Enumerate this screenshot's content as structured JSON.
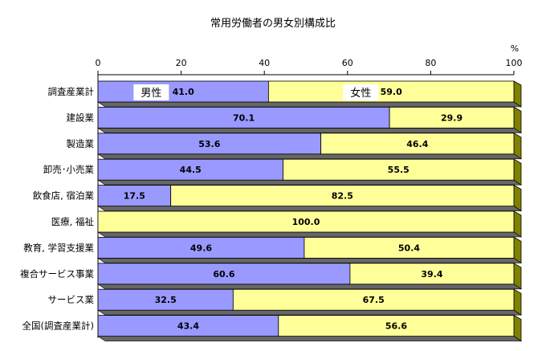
{
  "chart_data": {
    "type": "bar",
    "orientation": "horizontal",
    "stacked": true,
    "title": "常用労働者の男女別構成比",
    "unit_label": "%",
    "xlim": [
      0,
      100
    ],
    "xticks": [
      "0",
      "20",
      "40",
      "60",
      "80",
      "100"
    ],
    "grid": false,
    "categories": [
      "調査産業計",
      "建設業",
      "製造業",
      "卸売･小売業",
      "飲食店, 宿泊業",
      "医療, 福祉",
      "教育, 学習支援業",
      "複合サービス事業",
      "サービス業",
      "全国(調査産業計)"
    ],
    "series": [
      {
        "name": "男性",
        "color": "#9999ff",
        "values": [
          41.0,
          70.1,
          53.6,
          44.5,
          17.5,
          0,
          49.6,
          60.6,
          32.5,
          43.4
        ],
        "labels": [
          "41.0",
          "70.1",
          "53.6",
          "44.5",
          "17.5",
          "",
          "49.6",
          "60.6",
          "32.5",
          "43.4"
        ]
      },
      {
        "name": "女性",
        "color": "#ffff99",
        "values": [
          59.0,
          29.9,
          46.4,
          55.5,
          82.5,
          100.0,
          50.4,
          39.4,
          67.5,
          56.6
        ],
        "labels": [
          "59.0",
          "29.9",
          "46.4",
          "55.5",
          "82.5",
          "100.0",
          "50.4",
          "39.4",
          "67.5",
          "56.6"
        ]
      }
    ],
    "legend": "inside-first-bar"
  }
}
